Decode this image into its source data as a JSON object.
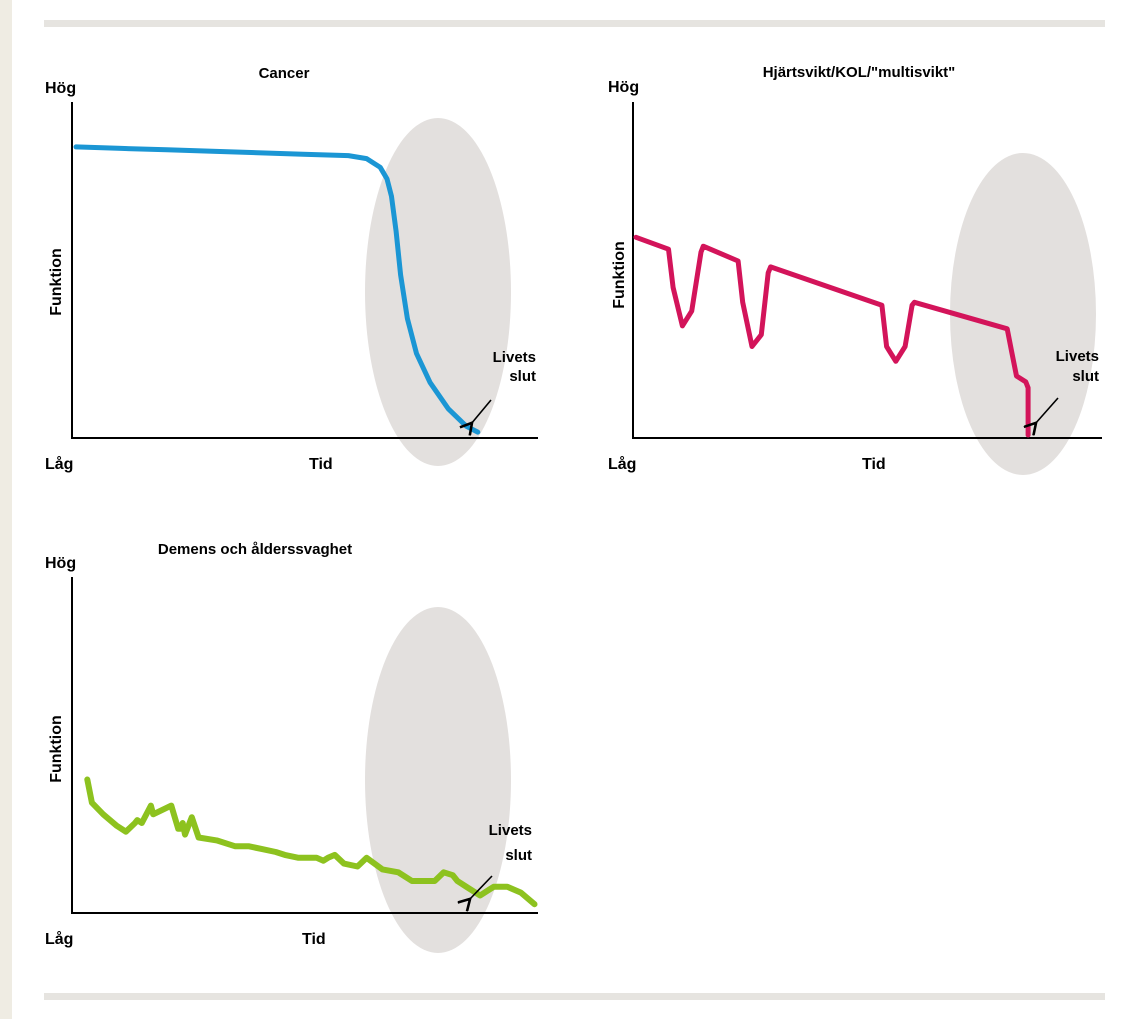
{
  "colors": {
    "shade": "#e3e0de",
    "axis": "#000000",
    "rule": "#e6e4e0",
    "background": "#efece3"
  },
  "chart_data": [
    {
      "type": "line",
      "title": "Cancer",
      "ylabel": "Funktion",
      "xlabel": "Tid",
      "y_top_label": "Hög",
      "y_bottom_label": "Låg",
      "annotation": [
        "Livets",
        "slut"
      ],
      "grid": false,
      "xlim": [
        0,
        100
      ],
      "ylim": [
        0,
        100
      ],
      "highlight_region": "end of life (final phase, shaded oval)",
      "series": [
        {
          "color": "#1b96d4",
          "x": [
            0,
            10,
            20,
            30,
            40,
            50,
            60,
            64,
            67,
            68.5,
            69.5,
            70.5,
            71.5,
            73,
            75,
            78,
            82,
            86,
            88.5
          ],
          "y": [
            99,
            98.5,
            98,
            97.5,
            97,
            96.5,
            96,
            95,
            92,
            88,
            82,
            70,
            55,
            40,
            28,
            18,
            9,
            3,
            1
          ]
        }
      ]
    },
    {
      "type": "line",
      "title": "Hjärtsvikt/KOL/\"multisvikt\"",
      "ylabel": "Funktion",
      "xlabel": "Tid",
      "y_top_label": "Hög",
      "y_bottom_label": "Låg",
      "annotation": [
        "Livets",
        "slut"
      ],
      "grid": false,
      "xlim": [
        0,
        100
      ],
      "ylim": [
        0,
        100
      ],
      "highlight_region": "end of life (final phase, shaded oval)",
      "series": [
        {
          "color": "#d3145a",
          "x": [
            0,
            7,
            8,
            10,
            12,
            14,
            14.5,
            22,
            23,
            25,
            27,
            28.5,
            29,
            53,
            54,
            56,
            58,
            59.5,
            60,
            80,
            81,
            82,
            84,
            84.5,
            84.5
          ],
          "y": [
            67,
            63,
            50,
            37,
            42,
            62,
            64,
            59,
            45,
            30,
            34,
            55,
            57,
            44,
            30,
            25,
            30,
            44,
            45,
            36,
            28,
            20,
            18,
            16,
            0
          ]
        }
      ]
    },
    {
      "type": "line",
      "title": "Demens och ålderssvaghet",
      "ylabel": "Funktion",
      "xlabel": "Tid",
      "y_top_label": "Hög",
      "y_bottom_label": "Låg",
      "annotation": [
        "Livets",
        "slut"
      ],
      "grid": false,
      "xlim": [
        0,
        100
      ],
      "ylim": [
        0,
        100
      ],
      "highlight_region": "end of life (final phase, shaded oval)",
      "series": [
        {
          "color": "#8dc21f",
          "x": [
            2.5,
            3.5,
            6,
            9,
            11,
            13,
            13.5,
            14.5,
            16.5,
            17,
            21,
            22.5,
            23,
            23.5,
            24,
            25.5,
            27,
            31,
            35,
            38,
            41,
            44,
            46,
            49,
            53,
            54.5,
            55.5,
            57,
            59,
            62,
            64,
            67.5,
            71,
            74,
            77,
            79,
            81,
            83,
            84,
            86,
            89,
            91,
            92,
            95,
            98,
            101
          ],
          "y": [
            45,
            37,
            33,
            29,
            27,
            30,
            31,
            30,
            36,
            33,
            36,
            28,
            28,
            30,
            26,
            32,
            25,
            24,
            22,
            22,
            21,
            20,
            19,
            18,
            18,
            17,
            18,
            19,
            16,
            15,
            18,
            14,
            13,
            10,
            10,
            10,
            13,
            12,
            10,
            8,
            5,
            7,
            8,
            8,
            6,
            2
          ]
        }
      ]
    }
  ]
}
